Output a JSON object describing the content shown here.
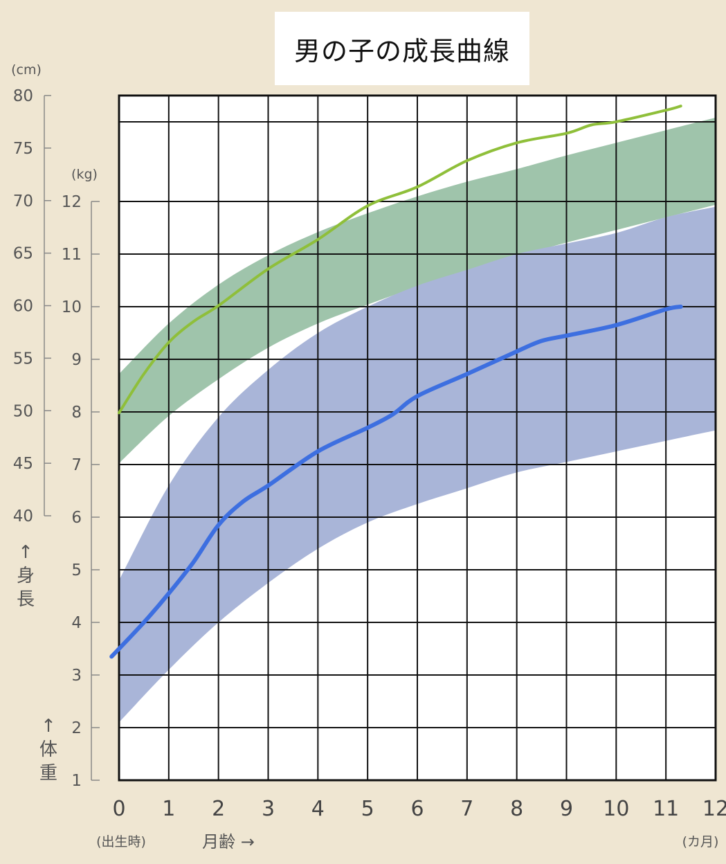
{
  "title": "男の子の成長曲線",
  "chart_data": {
    "type": "area",
    "title": "男の子の成長曲線",
    "x": {
      "label": "月齢 →",
      "sublabel": "(出生時)",
      "unit": "(カ月)",
      "ticks": [
        "0",
        "1",
        "2",
        "3",
        "4",
        "5",
        "6",
        "7",
        "8",
        "9",
        "10",
        "11",
        "12"
      ],
      "range": [
        0,
        12
      ]
    },
    "y_height": {
      "unit": "(cm)",
      "label": "↑身長",
      "ticks": [
        "80",
        "75",
        "70",
        "65",
        "60",
        "55",
        "50",
        "45",
        "40"
      ],
      "range": [
        40,
        80
      ]
    },
    "y_weight": {
      "unit": "(kg)",
      "label": "↑体重",
      "ticks": [
        "12",
        "11",
        "10",
        "9",
        "8",
        "7",
        "6",
        "5",
        "4",
        "3",
        "2",
        "1"
      ],
      "range": [
        1,
        12
      ]
    },
    "grid": true,
    "bands": [
      {
        "axis": "height",
        "color": "#9fc4ab",
        "x": [
          0,
          1,
          2,
          3,
          4,
          5,
          6,
          7,
          8,
          9,
          10,
          11,
          12
        ],
        "upper": [
          53.5,
          58.3,
          62.0,
          64.8,
          67.0,
          68.8,
          70.4,
          71.8,
          73.0,
          74.3,
          75.5,
          76.7,
          77.9
        ],
        "lower": [
          45.0,
          49.5,
          53.0,
          56.0,
          58.3,
          60.1,
          61.8,
          63.3,
          64.7,
          66.0,
          67.2,
          68.4,
          69.6
        ]
      },
      {
        "axis": "weight",
        "color": "#a9b5d8",
        "x": [
          0,
          1,
          2,
          3,
          4,
          5,
          6,
          7,
          8,
          9,
          10,
          11,
          12
        ],
        "upper": [
          4.8,
          6.6,
          7.9,
          8.8,
          9.5,
          10.0,
          10.4,
          10.7,
          11.0,
          11.2,
          11.4,
          11.7,
          11.9
        ],
        "lower": [
          2.1,
          3.1,
          4.0,
          4.75,
          5.4,
          5.9,
          6.25,
          6.55,
          6.85,
          7.05,
          7.25,
          7.45,
          7.65
        ]
      }
    ],
    "series": [
      {
        "axis": "height",
        "color": "#8fbf3a",
        "x": [
          0,
          0.5,
          1,
          1.5,
          2,
          3,
          4,
          5,
          6,
          7,
          8,
          9,
          9.5,
          10,
          11,
          11.3
        ],
        "values": [
          49.8,
          53.5,
          56.5,
          58.5,
          60.0,
          63.5,
          66.3,
          69.5,
          71.3,
          73.8,
          75.5,
          76.4,
          77.2,
          77.5,
          78.6,
          79.0
        ]
      },
      {
        "axis": "weight",
        "color": "#3d6fe0",
        "x": [
          -0.15,
          0.5,
          1,
          1.5,
          2,
          2.5,
          3,
          4,
          5,
          5.5,
          6,
          7,
          8,
          8.5,
          9,
          10,
          11,
          11.3
        ],
        "values": [
          3.35,
          4.0,
          4.55,
          5.15,
          5.85,
          6.3,
          6.6,
          7.25,
          7.7,
          7.95,
          8.3,
          8.72,
          9.15,
          9.35,
          9.45,
          9.65,
          9.95,
          10.0
        ]
      }
    ]
  }
}
